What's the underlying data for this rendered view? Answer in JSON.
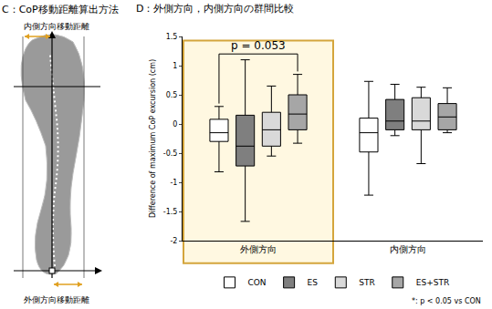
{
  "panel_c": {
    "title": "C：CoP移動距離算出方法",
    "top_label": "内側方向移動距離",
    "bottom_label": "外側方向移動距離"
  },
  "chart_data": {
    "type": "box",
    "title": "D：外側方向，内側方向の群間比較",
    "y_label": "Difference of maximum CoP excursion (cm)",
    "categories": [
      "外側方向",
      "内側方向"
    ],
    "series": [
      {
        "name": "CON",
        "color": "#ffffff",
        "min": [
          -0.82,
          -1.22
        ],
        "q1": [
          -0.3,
          -0.48
        ],
        "median": [
          -0.15,
          -0.15
        ],
        "q3": [
          0.08,
          0.1
        ],
        "max": [
          0.3,
          0.73
        ]
      },
      {
        "name": "ES",
        "color": "#7f7f7f",
        "min": [
          -1.67,
          -0.2
        ],
        "q1": [
          -0.72,
          -0.1
        ],
        "median": [
          -0.38,
          0.05
        ],
        "q3": [
          0.15,
          0.42
        ],
        "max": [
          1.1,
          0.68
        ]
      },
      {
        "name": "STR",
        "color": "#d9d9d9",
        "min": [
          -0.55,
          -0.68
        ],
        "q1": [
          -0.38,
          -0.1
        ],
        "median": [
          -0.1,
          0.05
        ],
        "q3": [
          0.2,
          0.45
        ],
        "max": [
          0.65,
          0.63
        ]
      },
      {
        "name": "ES+STR",
        "color": "#a6a6a6",
        "min": [
          -0.33,
          -0.15
        ],
        "q1": [
          -0.1,
          -0.1
        ],
        "median": [
          0.17,
          0.12
        ],
        "q3": [
          0.5,
          0.35
        ],
        "max": [
          0.85,
          0.62
        ]
      }
    ],
    "ylim": [
      -2,
      1.5
    ],
    "yticks": [
      -2,
      -1.5,
      -1,
      -0.5,
      0,
      0.5,
      1,
      1.5
    ],
    "grid": false,
    "legend": "bottom",
    "highlight": "外側方向",
    "comparisons": [
      {
        "category": "外側方向",
        "from": "CON",
        "to": "ES+STR",
        "y": 1.2,
        "label": "p = 0.053"
      }
    ],
    "note": "*: p < 0.05 vs CON"
  }
}
